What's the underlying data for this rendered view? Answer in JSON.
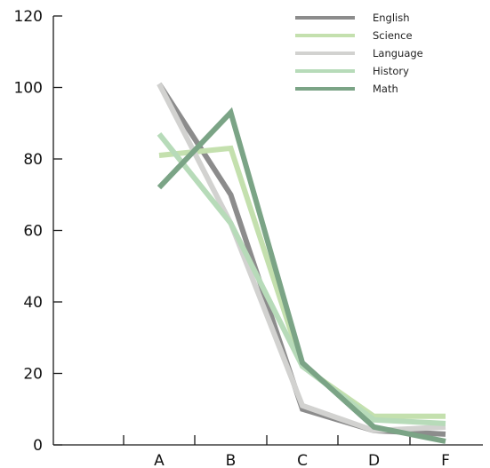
{
  "chart_data": {
    "type": "line",
    "categories": [
      "A",
      "B",
      "C",
      "D",
      "F"
    ],
    "ylim": [
      0,
      120
    ],
    "yticks": [
      0,
      20,
      40,
      60,
      80,
      100,
      120
    ],
    "grid": false,
    "legend_position": "top-right",
    "series": [
      {
        "name": "English",
        "color": "#8c8c8c",
        "values": [
          101,
          70,
          10,
          4,
          3
        ]
      },
      {
        "name": "Science",
        "color": "#c4e0ae",
        "values": [
          81,
          83,
          22,
          8,
          8
        ]
      },
      {
        "name": "Language",
        "color": "#d2d2d0",
        "values": [
          101,
          62,
          11,
          4,
          5
        ]
      },
      {
        "name": "History",
        "color": "#b7dbb9",
        "values": [
          87,
          62,
          22,
          7,
          6
        ]
      },
      {
        "name": "Math",
        "color": "#7ba486",
        "values": [
          72,
          93,
          23,
          5,
          1
        ]
      }
    ]
  }
}
